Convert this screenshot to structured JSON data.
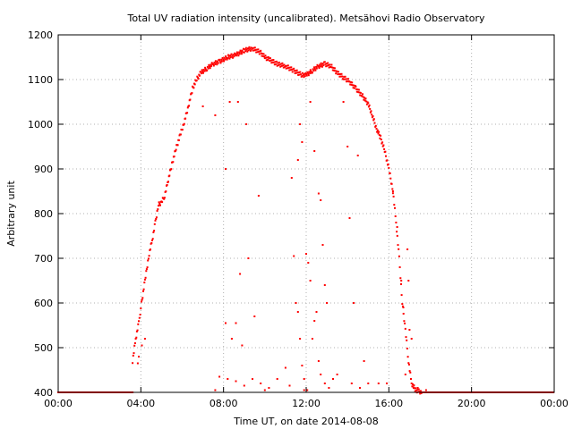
{
  "chart_data": {
    "type": "scatter",
    "title": "Total UV radiation intensity (uncalibrated). Metsähovi Radio Observatory",
    "xlabel": "Time UT, on date 2014-08-08",
    "ylabel": "Arbitrary unit",
    "xlim": [
      0,
      24
    ],
    "ylim": [
      400,
      1200
    ],
    "x_ticks": [
      0,
      4,
      8,
      12,
      16,
      20,
      24
    ],
    "x_tick_labels": [
      "00:00",
      "04:00",
      "08:00",
      "12:00",
      "16:00",
      "20:00",
      "00:00"
    ],
    "y_ticks": [
      400,
      500,
      600,
      700,
      800,
      900,
      1000,
      1100,
      1200
    ],
    "y_tick_labels": [
      "400",
      "500",
      "600",
      "700",
      "800",
      "900",
      "1000",
      "1100",
      "1200"
    ],
    "grid": true,
    "legend": "none",
    "marker_color": "#ff0000",
    "series": [
      {
        "name": "",
        "baseline_segments": [
          [
            0,
            3.6
          ],
          [
            17.6,
            24
          ]
        ],
        "envelope": [
          [
            3.6,
            470
          ],
          [
            3.75,
            520
          ],
          [
            3.9,
            555
          ],
          [
            4.0,
            590
          ],
          [
            4.2,
            650
          ],
          [
            4.4,
            710
          ],
          [
            4.55,
            740
          ],
          [
            4.7,
            780
          ],
          [
            4.85,
            820
          ],
          [
            5.0,
            825
          ],
          [
            5.15,
            840
          ],
          [
            5.3,
            870
          ],
          [
            5.5,
            910
          ],
          [
            5.7,
            945
          ],
          [
            5.9,
            975
          ],
          [
            6.1,
            1005
          ],
          [
            6.3,
            1040
          ],
          [
            6.5,
            1080
          ],
          [
            6.7,
            1100
          ],
          [
            6.9,
            1115
          ],
          [
            7.2,
            1125
          ],
          [
            7.5,
            1135
          ],
          [
            7.8,
            1140
          ],
          [
            8.2,
            1150
          ],
          [
            8.6,
            1155
          ],
          [
            9.0,
            1165
          ],
          [
            9.4,
            1170
          ],
          [
            9.8,
            1160
          ],
          [
            10.0,
            1150
          ],
          [
            10.2,
            1145
          ],
          [
            10.6,
            1135
          ],
          [
            11.0,
            1130
          ],
          [
            11.4,
            1120
          ],
          [
            11.8,
            1110
          ],
          [
            12.0,
            1110
          ],
          [
            12.3,
            1120
          ],
          [
            12.6,
            1130
          ],
          [
            12.9,
            1135
          ],
          [
            13.2,
            1130
          ],
          [
            13.5,
            1115
          ],
          [
            13.8,
            1105
          ],
          [
            14.1,
            1095
          ],
          [
            14.4,
            1080
          ],
          [
            14.7,
            1065
          ],
          [
            15.0,
            1045
          ],
          [
            15.2,
            1020
          ],
          [
            15.4,
            990
          ],
          [
            15.6,
            970
          ],
          [
            15.8,
            940
          ],
          [
            16.0,
            900
          ],
          [
            16.2,
            850
          ],
          [
            16.35,
            780
          ],
          [
            16.5,
            700
          ],
          [
            16.65,
            600
          ],
          [
            16.8,
            540
          ],
          [
            16.95,
            470
          ],
          [
            17.1,
            420
          ],
          [
            17.3,
            405
          ],
          [
            17.6,
            400
          ]
        ],
        "outliers": [
          [
            7.0,
            1040
          ],
          [
            7.6,
            1020
          ],
          [
            8.1,
            900
          ],
          [
            8.3,
            1050
          ],
          [
            8.7,
            1050
          ],
          [
            9.1,
            1000
          ],
          [
            9.7,
            840
          ],
          [
            9.2,
            700
          ],
          [
            8.8,
            665
          ],
          [
            9.5,
            570
          ],
          [
            8.1,
            555
          ],
          [
            8.6,
            555
          ],
          [
            8.4,
            520
          ],
          [
            8.9,
            505
          ],
          [
            7.8,
            435
          ],
          [
            8.2,
            430
          ],
          [
            8.6,
            425
          ],
          [
            9.0,
            415
          ],
          [
            9.4,
            430
          ],
          [
            9.8,
            420
          ],
          [
            10.2,
            410
          ],
          [
            10.6,
            430
          ],
          [
            11.0,
            455
          ],
          [
            11.2,
            415
          ],
          [
            11.4,
            705
          ],
          [
            11.5,
            600
          ],
          [
            11.6,
            580
          ],
          [
            11.7,
            520
          ],
          [
            11.8,
            460
          ],
          [
            11.9,
            430
          ],
          [
            12.0,
            710
          ],
          [
            12.1,
            690
          ],
          [
            12.2,
            650
          ],
          [
            11.3,
            880
          ],
          [
            11.6,
            920
          ],
          [
            11.7,
            1000
          ],
          [
            11.8,
            960
          ],
          [
            12.2,
            1050
          ],
          [
            12.4,
            940
          ],
          [
            12.6,
            845
          ],
          [
            12.7,
            830
          ],
          [
            12.8,
            730
          ],
          [
            12.9,
            640
          ],
          [
            13.0,
            600
          ],
          [
            12.5,
            580
          ],
          [
            12.4,
            560
          ],
          [
            12.3,
            520
          ],
          [
            12.6,
            470
          ],
          [
            12.7,
            440
          ],
          [
            12.9,
            420
          ],
          [
            13.1,
            410
          ],
          [
            13.3,
            430
          ],
          [
            13.5,
            440
          ],
          [
            13.8,
            1050
          ],
          [
            14.0,
            950
          ],
          [
            14.1,
            790
          ],
          [
            14.3,
            600
          ],
          [
            14.5,
            930
          ],
          [
            14.8,
            470
          ],
          [
            14.2,
            420
          ],
          [
            14.6,
            410
          ],
          [
            15.0,
            420
          ],
          [
            15.5,
            420
          ],
          [
            15.9,
            420
          ],
          [
            16.2,
            850
          ],
          [
            16.4,
            770
          ],
          [
            16.6,
            650
          ],
          [
            16.7,
            590
          ],
          [
            16.9,
            720
          ],
          [
            16.95,
            650
          ],
          [
            17.0,
            540
          ],
          [
            17.1,
            520
          ],
          [
            16.8,
            440
          ],
          [
            17.2,
            410
          ],
          [
            17.4,
            410
          ],
          [
            17.8,
            405
          ],
          [
            4.05,
            505
          ],
          [
            4.2,
            520
          ],
          [
            3.9,
            480
          ],
          [
            3.85,
            465
          ],
          [
            12.05,
            405
          ],
          [
            11.9,
            405
          ],
          [
            10.0,
            405
          ],
          [
            7.6,
            405
          ]
        ]
      }
    ]
  }
}
